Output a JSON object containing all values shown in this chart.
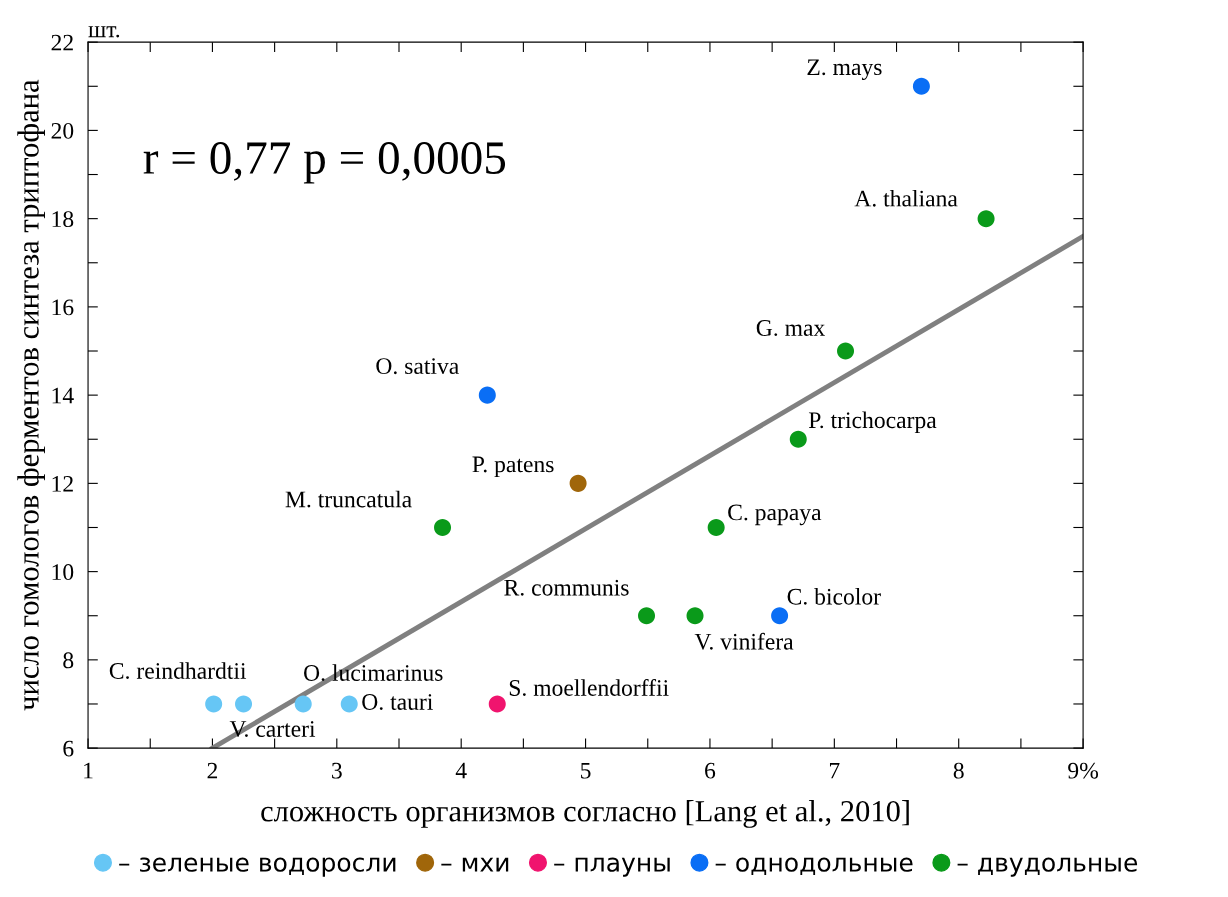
{
  "chart_data": {
    "type": "scatter",
    "xlabel": "сложность организмов согласно [Lang et al., 2010]",
    "ylabel": "число гомологов ферментов синтеза триптофана",
    "xlim": [
      1,
      9
    ],
    "xticks": [
      1,
      {
        "value": 1.5,
        "label": null
      },
      2,
      {
        "value": 2.5,
        "label": null
      },
      3,
      {
        "value": 3.5,
        "label": null
      },
      4,
      {
        "value": 4.5,
        "label": null
      },
      5,
      {
        "value": 5.5,
        "label": null
      },
      6,
      {
        "value": 6.5,
        "label": null
      },
      7,
      {
        "value": 7.5,
        "label": null
      },
      8,
      {
        "value": 8.5,
        "label": null
      },
      {
        "value": 9,
        "label": "9%"
      }
    ],
    "ylim": [
      6,
      22
    ],
    "yticks": [
      6,
      {
        "value": 7,
        "label": null
      },
      8,
      {
        "value": 9,
        "label": null
      },
      10,
      {
        "value": 11,
        "label": null
      },
      12,
      {
        "value": 13,
        "label": null
      },
      14,
      {
        "value": 15,
        "label": null
      },
      16,
      {
        "value": 17,
        "label": null
      },
      18,
      {
        "value": 19,
        "label": null
      },
      20,
      {
        "value": 21,
        "label": null
      },
      22
    ],
    "grid": false,
    "legend": "bottom",
    "marker": "circle",
    "series": [
      {
        "name": "– зеленые водоросли",
        "color": "#66c6f5",
        "x": [
          2.01,
          2.25,
          2.73,
          3.1
        ],
        "values": [
          7,
          7,
          7,
          7
        ]
      },
      {
        "name": "– мхи",
        "color": "#a0660a",
        "x": [
          4.94
        ],
        "values": [
          12
        ]
      },
      {
        "name": "– плауны",
        "color": "#f0146e",
        "x": [
          4.29
        ],
        "values": [
          7
        ]
      },
      {
        "name": "– однодольные",
        "color": "#0a6ef5",
        "x": [
          4.21,
          6.56,
          7.7
        ],
        "values": [
          14,
          9,
          21
        ]
      },
      {
        "name": "– двудольные",
        "color": "#0a9a1a",
        "x": [
          3.85,
          5.49,
          5.88,
          6.05,
          6.71,
          7.09,
          8.22
        ],
        "values": [
          11,
          9,
          9,
          11,
          13,
          15,
          18
        ]
      },
      {
        "type": "line",
        "color": "#808080",
        "x": [
          2.0,
          9.0
        ],
        "values": [
          6.0,
          17.6
        ],
        "marker": "none"
      }
    ],
    "annotations": [
      "r = 0,77 p = 0,0005",
      "шт.",
      {
        "text": "C. reindhardtii",
        "x": 2.01,
        "y": 7
      },
      {
        "text": "V. carteri",
        "x": 2.25,
        "y": 7
      },
      {
        "text": "O. lucimarinus",
        "x": 2.73,
        "y": 7
      },
      {
        "text": "O. tauri",
        "x": 3.1,
        "y": 7
      },
      {
        "text": "S. moellendorffii",
        "x": 4.29,
        "y": 7
      },
      {
        "text": "O. sativa",
        "x": 4.21,
        "y": 14
      },
      {
        "text": "P. patens",
        "x": 4.94,
        "y": 12
      },
      {
        "text": "M. truncatula",
        "x": 3.85,
        "y": 11
      },
      {
        "text": "R. communis",
        "x": 5.49,
        "y": 9
      },
      {
        "text": "V. vinifera",
        "x": 5.88,
        "y": 9
      },
      {
        "text": "C. papaya",
        "x": 6.05,
        "y": 11
      },
      {
        "text": "C. bicolor",
        "x": 6.56,
        "y": 9
      },
      {
        "text": "P. trichocarpa",
        "x": 6.71,
        "y": 13
      },
      {
        "text": "G. max",
        "x": 7.09,
        "y": 15
      },
      {
        "text": "A. thaliana",
        "x": 8.22,
        "y": 18
      },
      {
        "text": "Z. mays",
        "x": 7.7,
        "y": 21
      }
    ]
  }
}
